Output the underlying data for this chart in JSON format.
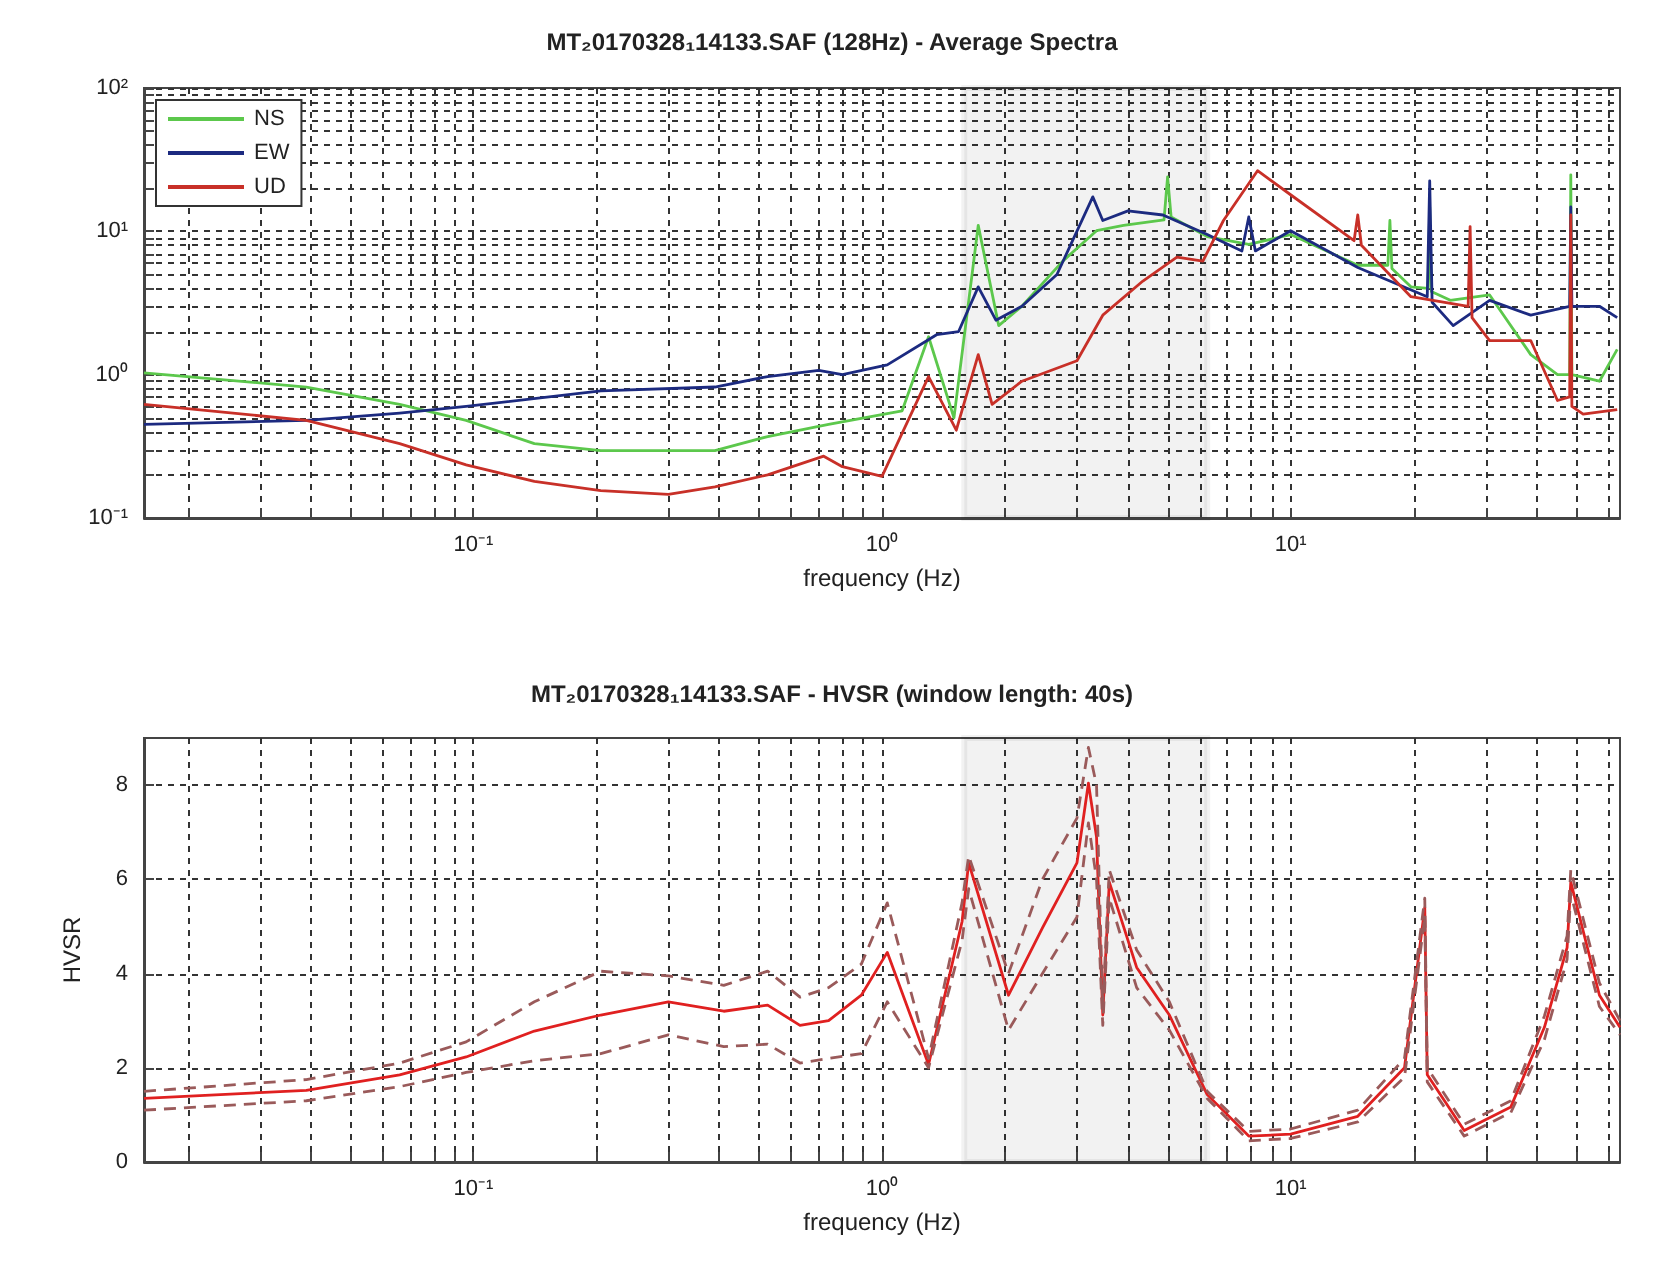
{
  "chart_data": [
    {
      "type": "line",
      "title": "MT₂0170328₁14133.SAF (128Hz) - Average Spectra",
      "xlabel": "frequency (Hz)",
      "log": "xy",
      "grid": true,
      "legend": "top left",
      "xlim": [
        0.015625,
        64
      ],
      "xticks": [
        {
          "value": 0.02,
          "label": null
        },
        {
          "value": 0.03,
          "label": null
        },
        {
          "value": 0.04,
          "label": null
        },
        {
          "value": 0.05,
          "label": null
        },
        {
          "value": 0.06,
          "label": null
        },
        {
          "value": 0.07,
          "label": null
        },
        {
          "value": 0.08,
          "label": null
        },
        {
          "value": 0.09,
          "label": null
        },
        {
          "value": 0.1,
          "label": "10⁻¹"
        },
        {
          "value": 0.2,
          "label": null
        },
        {
          "value": 0.3,
          "label": null
        },
        {
          "value": 0.4,
          "label": null
        },
        {
          "value": 0.5,
          "label": null
        },
        {
          "value": 0.6,
          "label": null
        },
        {
          "value": 0.7,
          "label": null
        },
        {
          "value": 0.8,
          "label": null
        },
        {
          "value": 0.9,
          "label": null
        },
        {
          "value": 1,
          "label": "10⁰"
        },
        {
          "value": 2,
          "label": null
        },
        {
          "value": 3,
          "label": null
        },
        {
          "value": 4,
          "label": null
        },
        {
          "value": 5,
          "label": null
        },
        {
          "value": 6,
          "label": null
        },
        {
          "value": 7,
          "label": null
        },
        {
          "value": 8,
          "label": null
        },
        {
          "value": 9,
          "label": null
        },
        {
          "value": 10,
          "label": "10¹"
        },
        {
          "value": 20,
          "label": null
        },
        {
          "value": 30,
          "label": null
        },
        {
          "value": 40,
          "label": null
        },
        {
          "value": 50,
          "label": null
        },
        {
          "value": 60,
          "label": null
        }
      ],
      "ylim": [
        0.1,
        100
      ],
      "yticks": [
        {
          "value": 0.1,
          "label": "10⁻¹"
        },
        {
          "value": 0.2,
          "label": null
        },
        {
          "value": 0.3,
          "label": null
        },
        {
          "value": 0.4,
          "label": null
        },
        {
          "value": 0.5,
          "label": null
        },
        {
          "value": 0.6,
          "label": null
        },
        {
          "value": 0.7,
          "label": null
        },
        {
          "value": 0.8,
          "label": null
        },
        {
          "value": 0.9,
          "label": null
        },
        {
          "value": 1,
          "label": "10⁰"
        },
        {
          "value": 2,
          "label": null
        },
        {
          "value": 3,
          "label": null
        },
        {
          "value": 4,
          "label": null
        },
        {
          "value": 5,
          "label": null
        },
        {
          "value": 6,
          "label": null
        },
        {
          "value": 7,
          "label": null
        },
        {
          "value": 8,
          "label": null
        },
        {
          "value": 9,
          "label": null
        },
        {
          "value": 10,
          "label": "10¹"
        },
        {
          "value": 20,
          "label": null
        },
        {
          "value": 30,
          "label": null
        },
        {
          "value": 40,
          "label": null
        },
        {
          "value": 50,
          "label": null
        },
        {
          "value": 60,
          "label": null
        },
        {
          "value": 70,
          "label": null
        },
        {
          "value": 80,
          "label": null
        },
        {
          "value": 90,
          "label": null
        },
        {
          "value": 100,
          "label": "10²"
        }
      ],
      "bands": [
        {
          "axis": "x",
          "from": 1.59,
          "to": 6.25,
          "color": "#000000"
        }
      ],
      "series": [
        {
          "name": "NS",
          "color": "#5cc84c",
          "x": [
            0.015625,
            0.039,
            0.066,
            0.096,
            0.141,
            0.205,
            0.39,
            0.525,
            0.74,
            1.12,
            1.3,
            1.5,
            1.72,
            1.93,
            2.2,
            2.77,
            3.35,
            3.9,
            4.9,
            5.0,
            5.1,
            6.25,
            7.9,
            10,
            14.6,
            17.3,
            17.5,
            17.7,
            19.7,
            21.7,
            21.9,
            22.1,
            24.6,
            30.7,
            38.7,
            45,
            48.2,
            48.5,
            48.8,
            57,
            63
          ],
          "values": [
            1.03,
            0.82,
            0.62,
            0.48,
            0.33,
            0.295,
            0.295,
            0.37,
            0.45,
            0.56,
            1.84,
            0.5,
            11,
            2.2,
            3,
            6.2,
            10.1,
            11,
            12,
            24,
            12.6,
            9.2,
            8.1,
            9.5,
            5.8,
            5.8,
            11.9,
            5.5,
            4.1,
            4,
            14.8,
            3.8,
            3.3,
            3.6,
            1.38,
            1.0,
            1.0,
            24.8,
            1.0,
            0.9,
            1.5
          ]
        },
        {
          "name": "EW",
          "color": "#1c2a80",
          "x": [
            0.015625,
            0.039,
            0.066,
            0.096,
            0.205,
            0.39,
            0.525,
            0.7,
            0.8,
            1.03,
            1.36,
            1.54,
            1.72,
            1.9,
            2.2,
            2.68,
            3.28,
            3.47,
            4.0,
            4.87,
            6.25,
            7.6,
            7.9,
            8.2,
            10,
            14.6,
            21.6,
            21.9,
            22.2,
            25,
            30.7,
            38.7,
            48.2,
            48.5,
            48.8,
            57,
            63
          ],
          "values": [
            0.45,
            0.48,
            0.54,
            0.6,
            0.77,
            0.82,
            0.97,
            1.07,
            1.0,
            1.17,
            1.9,
            2.0,
            4.1,
            2.4,
            3.0,
            5,
            17.4,
            11.9,
            13.9,
            13,
            9.5,
            7.3,
            12.6,
            7.3,
            10.1,
            5.6,
            3.5,
            22.5,
            3.2,
            2.2,
            3.3,
            2.6,
            3,
            14.8,
            3,
            3.0,
            2.5
          ]
        },
        {
          "name": "UD",
          "color": "#c83028",
          "x": [
            0.015625,
            0.039,
            0.066,
            0.096,
            0.141,
            0.205,
            0.3,
            0.39,
            0.525,
            0.72,
            0.8,
            1.0,
            1.3,
            1.52,
            1.72,
            1.86,
            2.2,
            3.0,
            3.47,
            4.35,
            5.27,
            6.1,
            6.85,
            8.3,
            10,
            14.3,
            14.6,
            14.9,
            19.7,
            27.2,
            27.5,
            27.8,
            30.7,
            38.7,
            45,
            48.2,
            48.5,
            48.8,
            52,
            63
          ],
          "values": [
            0.62,
            0.48,
            0.33,
            0.235,
            0.18,
            0.155,
            0.146,
            0.165,
            0.2,
            0.27,
            0.228,
            0.195,
            0.97,
            0.41,
            1.38,
            0.62,
            0.9,
            1.25,
            2.6,
            4.5,
            6.6,
            6.2,
            11.9,
            26.5,
            18,
            8.6,
            13,
            8,
            3.5,
            3,
            10.8,
            2.5,
            1.73,
            1.73,
            0.66,
            0.7,
            13,
            0.6,
            0.53,
            0.57
          ]
        }
      ]
    },
    {
      "type": "line",
      "title": "MT₂0170328₁14133.SAF - HVSR (window length: 40s)",
      "xlabel": "frequency (Hz)",
      "ylabel": "HVSR",
      "log": "x",
      "grid": true,
      "xlim": [
        0.015625,
        64
      ],
      "xticks": [
        {
          "value": 0.02,
          "label": null
        },
        {
          "value": 0.03,
          "label": null
        },
        {
          "value": 0.04,
          "label": null
        },
        {
          "value": 0.05,
          "label": null
        },
        {
          "value": 0.06,
          "label": null
        },
        {
          "value": 0.07,
          "label": null
        },
        {
          "value": 0.08,
          "label": null
        },
        {
          "value": 0.09,
          "label": null
        },
        {
          "value": 0.1,
          "label": "10⁻¹"
        },
        {
          "value": 0.2,
          "label": null
        },
        {
          "value": 0.3,
          "label": null
        },
        {
          "value": 0.4,
          "label": null
        },
        {
          "value": 0.5,
          "label": null
        },
        {
          "value": 0.6,
          "label": null
        },
        {
          "value": 0.7,
          "label": null
        },
        {
          "value": 0.8,
          "label": null
        },
        {
          "value": 0.9,
          "label": null
        },
        {
          "value": 1,
          "label": "10⁰"
        },
        {
          "value": 2,
          "label": null
        },
        {
          "value": 3,
          "label": null
        },
        {
          "value": 4,
          "label": null
        },
        {
          "value": 5,
          "label": null
        },
        {
          "value": 6,
          "label": null
        },
        {
          "value": 7,
          "label": null
        },
        {
          "value": 8,
          "label": null
        },
        {
          "value": 9,
          "label": null
        },
        {
          "value": 10,
          "label": "10¹"
        },
        {
          "value": 20,
          "label": null
        },
        {
          "value": 30,
          "label": null
        },
        {
          "value": 40,
          "label": null
        },
        {
          "value": 50,
          "label": null
        },
        {
          "value": 60,
          "label": null
        }
      ],
      "ylim": [
        0,
        9
      ],
      "yticks": [
        0,
        2,
        4,
        6,
        8
      ],
      "bands": [
        {
          "axis": "x",
          "from": 1.59,
          "to": 6.25,
          "color": "#000000"
        }
      ],
      "x": [
        0.015625,
        0.039,
        0.066,
        0.096,
        0.141,
        0.205,
        0.3,
        0.41,
        0.525,
        0.63,
        0.74,
        0.89,
        1.03,
        1.3,
        1.57,
        1.63,
        2.04,
        2.47,
        3.0,
        3.2,
        3.35,
        3.47,
        3.6,
        4.2,
        5.05,
        6.25,
        7.9,
        10,
        14.6,
        19,
        21.3,
        21.6,
        26.6,
        34.6,
        41.8,
        47.5,
        48.5,
        57,
        64
      ],
      "series": [
        {
          "color": "#e02020",
          "values": [
            1.35,
            1.52,
            1.85,
            2.23,
            2.78,
            3.12,
            3.4,
            3.2,
            3.33,
            2.9,
            3.0,
            3.54,
            4.45,
            2.07,
            5.1,
            6.35,
            3.54,
            4.97,
            6.35,
            8.04,
            6.9,
            3.12,
            5.94,
            4.13,
            3.12,
            1.43,
            0.55,
            0.59,
            0.97,
            2.0,
            5.4,
            1.85,
            0.67,
            1.17,
            2.86,
            4.55,
            5.94,
            3.54,
            2.86
          ]
        },
        {
          "color": "#9a5a5a",
          "line_style": "dashed",
          "values": [
            1.5,
            1.75,
            2.1,
            2.55,
            3.4,
            4.05,
            3.95,
            3.75,
            4.05,
            3.5,
            3.7,
            4.2,
            5.5,
            2.2,
            5.5,
            6.5,
            4.0,
            6.0,
            7.3,
            8.8,
            8.0,
            3.3,
            6.2,
            4.5,
            3.4,
            1.5,
            0.65,
            0.7,
            1.1,
            2.2,
            5.6,
            2.0,
            0.8,
            1.3,
            3.1,
            4.8,
            6.2,
            3.8,
            3.0
          ]
        },
        {
          "color": "#9a5a5a",
          "line_style": "dashed",
          "values": [
            1.1,
            1.3,
            1.6,
            1.9,
            2.15,
            2.3,
            2.7,
            2.45,
            2.5,
            2.1,
            2.2,
            2.3,
            3.4,
            2.0,
            4.7,
            5.8,
            2.8,
            4.0,
            5.2,
            7.2,
            6.0,
            2.9,
            5.6,
            3.7,
            2.8,
            1.35,
            0.45,
            0.5,
            0.85,
            1.8,
            5.2,
            1.7,
            0.55,
            1.05,
            2.6,
            4.3,
            5.7,
            3.3,
            2.7
          ]
        }
      ]
    }
  ]
}
